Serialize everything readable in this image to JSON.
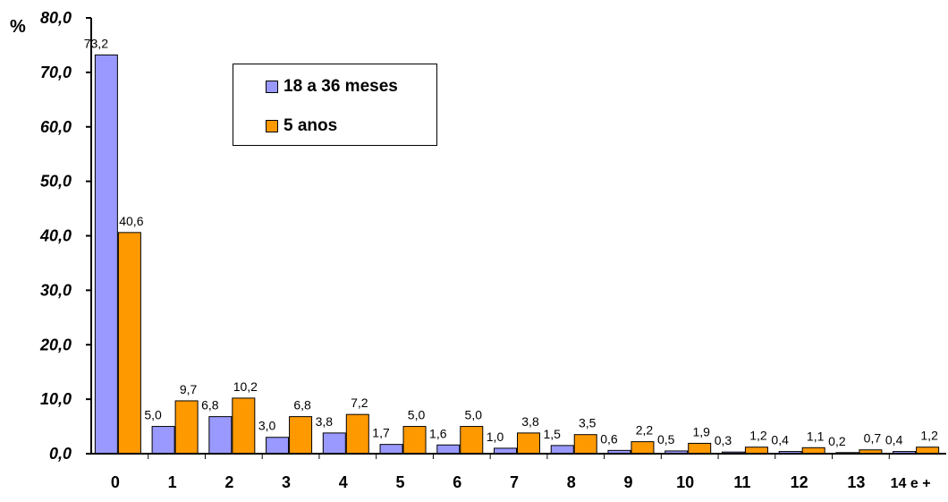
{
  "chart_data": {
    "type": "bar",
    "title": "",
    "xlabel": "",
    "ylabel": "%",
    "ylim": [
      0,
      80
    ],
    "yticks": [
      "0,0",
      "10,0",
      "20,0",
      "30,0",
      "40,0",
      "50,0",
      "60,0",
      "70,0",
      "80,0"
    ],
    "categories": [
      "0",
      "1",
      "2",
      "3",
      "4",
      "5",
      "6",
      "7",
      "8",
      "9",
      "10",
      "11",
      "12",
      "13",
      "14 e +"
    ],
    "series": [
      {
        "name": "18 a 36 meses",
        "color": "#9999ff",
        "values": [
          73.2,
          5.0,
          6.8,
          3.0,
          3.8,
          1.7,
          1.6,
          1.0,
          1.5,
          0.6,
          0.5,
          0.3,
          0.4,
          0.2,
          0.4
        ],
        "labels": [
          "73,2",
          "5,0",
          "6,8",
          "3,0",
          "3,8",
          "1,7",
          "1,6",
          "1,0",
          "1,5",
          "0,6",
          "0,5",
          "0,3",
          "0,4",
          "0,2",
          "0,4"
        ]
      },
      {
        "name": "5 anos",
        "color": "#ff9900",
        "values": [
          40.6,
          9.7,
          10.2,
          6.8,
          7.2,
          5.0,
          5.0,
          3.8,
          3.5,
          2.2,
          1.9,
          1.2,
          1.1,
          0.7,
          1.2
        ],
        "labels": [
          "40,6",
          "9,7",
          "10,2",
          "6,8",
          "7,2",
          "5,0",
          "5,0",
          "3,8",
          "3,5",
          "2,2",
          "1,9",
          "1,2",
          "1,1",
          "0,7",
          "1,2"
        ]
      }
    ],
    "legend": "top-left inside plot",
    "grid": false
  }
}
